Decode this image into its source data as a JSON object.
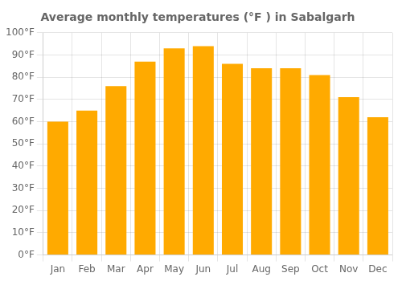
{
  "chart_data": {
    "type": "bar",
    "title": "Average monthly temperatures (°F ) in Sabalgarh",
    "categories": [
      "Jan",
      "Feb",
      "Mar",
      "Apr",
      "May",
      "Jun",
      "Jul",
      "Aug",
      "Sep",
      "Oct",
      "Nov",
      "Dec"
    ],
    "values": [
      60,
      65,
      76,
      87,
      93,
      94,
      86,
      84,
      84,
      81,
      71,
      62
    ],
    "color": "#FFAA00",
    "ylim": [
      0,
      100
    ],
    "yticks": [
      {
        "value": 0,
        "label": "0°F"
      },
      {
        "value": 10,
        "label": "10°F"
      },
      {
        "value": 20,
        "label": "20°F"
      },
      {
        "value": 30,
        "label": "30°F"
      },
      {
        "value": 40,
        "label": "40°F"
      },
      {
        "value": 50,
        "label": "50°F"
      },
      {
        "value": 60,
        "label": "60°F"
      },
      {
        "value": 70,
        "label": "70°F"
      },
      {
        "value": 80,
        "label": "80°F"
      },
      {
        "value": 90,
        "label": "90°F"
      },
      {
        "value": 100,
        "label": "100°F"
      }
    ],
    "grid": true
  }
}
